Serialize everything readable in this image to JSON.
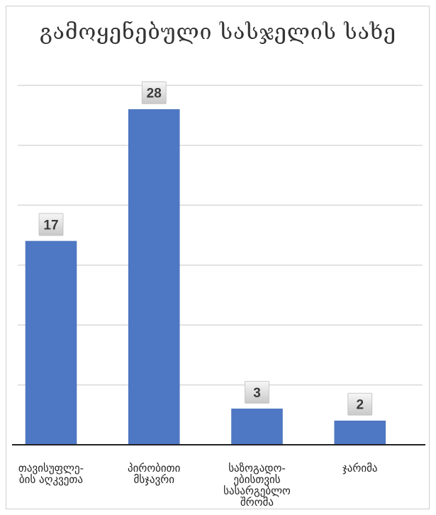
{
  "chart_data": {
    "type": "bar",
    "title": "გამოყენებული სასჯელის სახე",
    "categories": [
      [
        "თავისუფლე-",
        "ბის აღკვეთა"
      ],
      [
        "პირობითი",
        "მსჯავრი"
      ],
      [
        "საზოგადო-",
        "ებისთვის",
        "სასარგებლო",
        "შრომა"
      ],
      [
        "ჯარიმა"
      ]
    ],
    "values": [
      17,
      28,
      3,
      2
    ],
    "data_labels": [
      "17",
      "28",
      "3",
      "2"
    ],
    "xlabel": "",
    "ylabel": "",
    "ylim": [
      0,
      35
    ],
    "y_gridlines": [
      5,
      10,
      15,
      20,
      25,
      30
    ],
    "grid": true,
    "y_tick_labels_visible": false,
    "legend": "none",
    "colors": {
      "bar": "#4f78c4",
      "bar_edge": "#3f68b4",
      "grid": "#d9d9d9",
      "axis": "#222222",
      "label_box_top": "#f7f7f7",
      "label_box_bottom": "#c9c9c9"
    }
  }
}
